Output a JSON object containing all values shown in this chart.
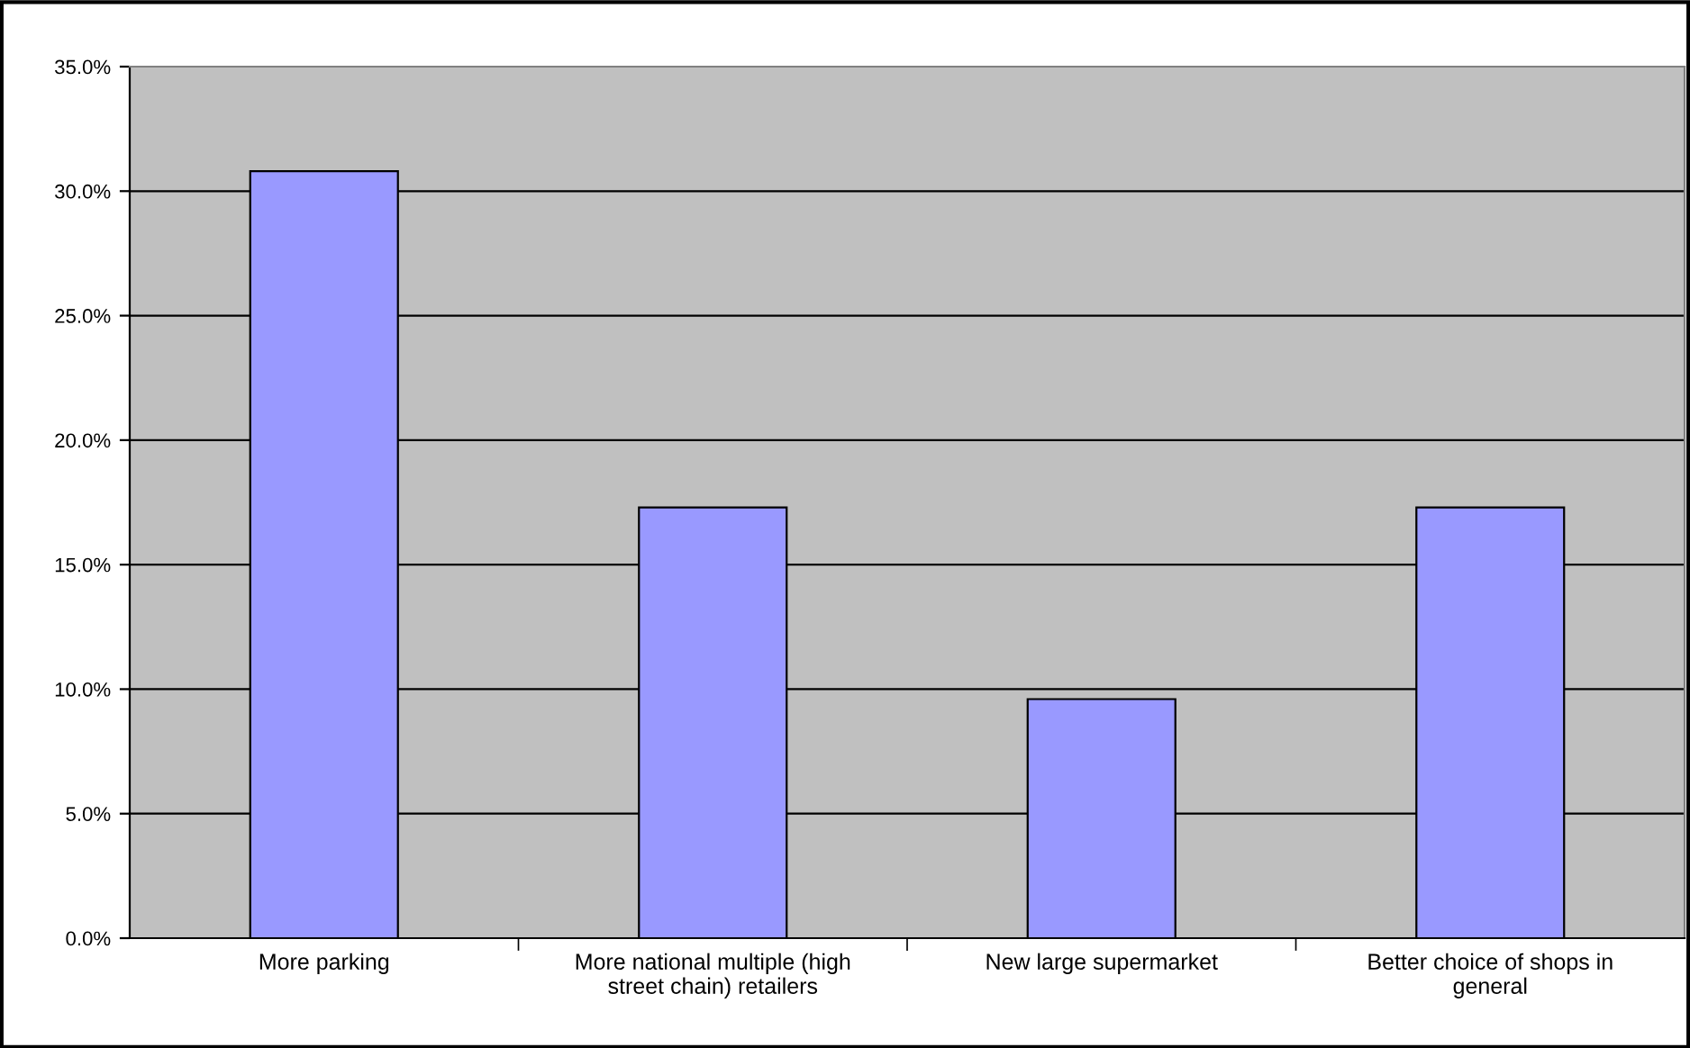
{
  "chart_data": {
    "type": "bar",
    "categories": [
      "More parking",
      "More national multiple (high street chain) retailers",
      "New large supermarket",
      "Better choice of shops in general"
    ],
    "values": [
      30.8,
      17.3,
      9.6,
      17.3
    ],
    "color": "#9999ff",
    "ylim": [
      0,
      35
    ],
    "yticks": [
      {
        "value": 0,
        "label": "0.0%"
      },
      {
        "value": 5,
        "label": "5.0%"
      },
      {
        "value": 10,
        "label": "10.0%"
      },
      {
        "value": 15,
        "label": "15.0%"
      },
      {
        "value": 20,
        "label": "20.0%"
      },
      {
        "value": 25,
        "label": "25.0%"
      },
      {
        "value": 30,
        "label": "30.0%"
      },
      {
        "value": 35,
        "label": "35.0%"
      }
    ],
    "grid": "y",
    "legend": false
  }
}
